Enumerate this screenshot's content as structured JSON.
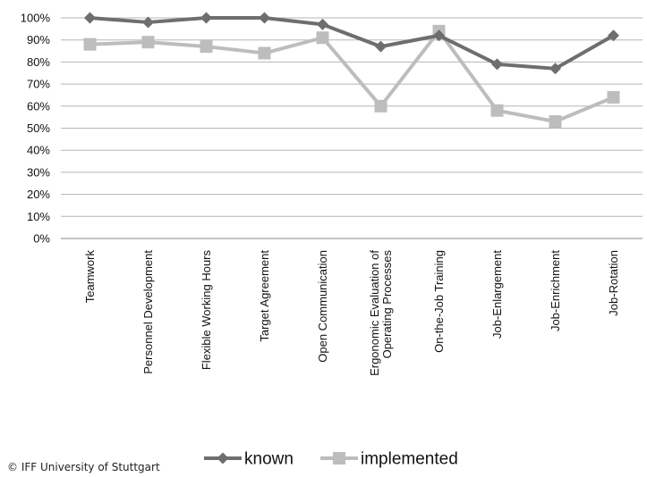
{
  "chart_data": {
    "type": "line",
    "categories": [
      [
        "Teamwork"
      ],
      [
        "Personnel Development"
      ],
      [
        "Flexible Working Hours"
      ],
      [
        "Target Agreement"
      ],
      [
        "Open Communication"
      ],
      [
        "Ergonomic  Evaluation of",
        "Operating Processes"
      ],
      [
        "On-the-Job Training"
      ],
      [
        "Job-Enlargement"
      ],
      [
        "Job-Enrichment"
      ],
      [
        "Job-Rotation"
      ]
    ],
    "series": [
      {
        "name": "known",
        "color": "#6e6e6e",
        "marker": "diamond",
        "values": [
          100,
          98,
          100,
          100,
          97,
          87,
          92,
          79,
          77,
          92
        ]
      },
      {
        "name": "implemented",
        "color": "#bdbdbd",
        "marker": "square",
        "values": [
          88,
          89,
          87,
          84,
          91,
          60,
          94,
          58,
          53,
          64
        ]
      }
    ],
    "yticks": [
      "0%",
      "10%",
      "20%",
      "30%",
      "40%",
      "50%",
      "60%",
      "70%",
      "80%",
      "90%",
      "100%"
    ],
    "ylim": [
      0,
      100
    ],
    "grid": true,
    "legend_position": "bottom"
  },
  "copyright": "© IFF University of Stuttgart"
}
